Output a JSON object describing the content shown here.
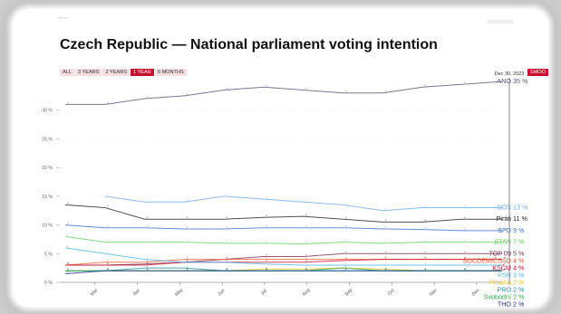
{
  "header": {
    "title": "Czech Republic — National parliament voting intention",
    "tabs": [
      {
        "label": "ALL",
        "active": false
      },
      {
        "label": "3 YEARS",
        "active": false
      },
      {
        "label": "2 YEARS",
        "active": false
      },
      {
        "label": "1 YEAR",
        "active": true
      },
      {
        "label": "6 MONTHS",
        "active": false
      }
    ],
    "smooth_label": "SMOO"
  },
  "chart_data": {
    "type": "line",
    "title": "Czech Republic — National parliament voting intention",
    "ylim": [
      0,
      35
    ],
    "y_ticks": [
      0,
      5,
      10,
      15,
      20,
      25,
      30
    ],
    "y_tick_labels": [
      "0 %",
      "5 %",
      "10 %",
      "15 %",
      "20 %",
      "25 %",
      "30 %"
    ],
    "x_ticks": [
      "Mar",
      "Apr",
      "May",
      "Jun",
      "Jul",
      "Aug",
      "Sep",
      "Oct",
      "Nov",
      "Dec"
    ],
    "cursor_label": "Dec 30, 2023",
    "x": [
      0,
      1,
      2,
      3,
      4,
      5,
      6,
      7,
      8,
      9,
      10,
      11
    ],
    "series": [
      {
        "name": "ANO",
        "label": "35 %",
        "color": "#5b5576",
        "end": 35,
        "values": [
          31,
          31,
          32,
          32.5,
          33.5,
          34,
          33.5,
          33,
          33,
          34,
          34.5,
          35
        ]
      },
      {
        "name": "ODS",
        "label": "13 %",
        "color": "#6fa8e6",
        "end": 13,
        "values": [
          null,
          15,
          14,
          14,
          15,
          14.5,
          14,
          13.5,
          12.5,
          13,
          13,
          13
        ]
      },
      {
        "name": "Piráti",
        "label": "11 %",
        "color": "#222222",
        "end": 11,
        "values": [
          13.5,
          13,
          11,
          11,
          11,
          11.3,
          11.5,
          11,
          10.5,
          10.5,
          11,
          11
        ]
      },
      {
        "name": "SPD",
        "label": "9 %",
        "color": "#3b6ed6",
        "end": 9,
        "values": [
          10,
          9.5,
          9.5,
          9.3,
          9.3,
          9.5,
          9.5,
          9.5,
          9.3,
          9.2,
          9,
          9
        ]
      },
      {
        "name": "STAN",
        "label": "7 %",
        "color": "#5ccc5c",
        "end": 7,
        "values": [
          8,
          7,
          7,
          7,
          6.8,
          6.8,
          6.7,
          7,
          6.8,
          7,
          7,
          7
        ]
      },
      {
        "name": "TOP 09",
        "label": "5 %",
        "color": "#7a2e52",
        "end": 5,
        "values": [
          3,
          3,
          3.2,
          3.5,
          4,
          4.5,
          4.5,
          5,
          5,
          5,
          5,
          5
        ]
      },
      {
        "name": "SOCDEM/ČSSD",
        "label": "4 %",
        "color": "#f2572c",
        "end": 4,
        "values": [
          3,
          3.5,
          3.5,
          4,
          4,
          4,
          4,
          4,
          4,
          4,
          4,
          4
        ]
      },
      {
        "name": "KSČM",
        "label": "4 %",
        "color": "#c8102e",
        "end": 4,
        "values": [
          3,
          3,
          3,
          3.5,
          3.5,
          3.5,
          3.5,
          3.8,
          4,
          4,
          4,
          4
        ]
      },
      {
        "name": "PSH",
        "label": "3 %",
        "color": "#4db3e6",
        "end": 3,
        "values": [
          6,
          5,
          4,
          3.5,
          3.5,
          3.2,
          3,
          3,
          3,
          3,
          3,
          3
        ]
      },
      {
        "name": "Přísaha",
        "label": "2 %",
        "color": "#e8c520",
        "end": 2,
        "values": [
          2,
          2,
          2,
          2,
          2,
          2.3,
          2.3,
          2.5,
          2.3,
          2,
          2,
          2
        ]
      },
      {
        "name": "PRO",
        "label": "2 %",
        "color": "#1c8fa0",
        "end": 2,
        "values": [
          2,
          2,
          2.5,
          2.5,
          2,
          2,
          2,
          2,
          2,
          2,
          2,
          2
        ]
      },
      {
        "name": "Svobodní",
        "label": "2 %",
        "color": "#2ca84a",
        "end": 2,
        "values": [
          2,
          2,
          2,
          2,
          2,
          2,
          2,
          2.5,
          2,
          2,
          2,
          2
        ]
      },
      {
        "name": "THO",
        "label": "2 %",
        "color": "#1a2f8a",
        "end": 2,
        "values": [
          1.5,
          2,
          2,
          2,
          2,
          2,
          2,
          2,
          2,
          2,
          2,
          2
        ]
      }
    ]
  }
}
